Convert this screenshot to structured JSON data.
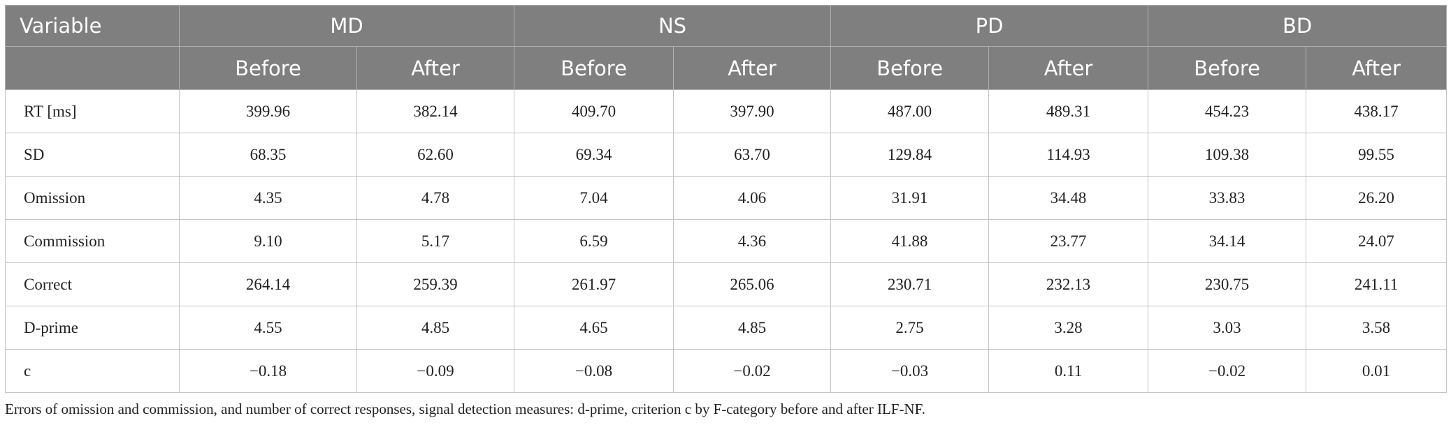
{
  "header": {
    "top": [
      "Variable",
      "MD",
      "NS",
      "PD",
      "BD"
    ],
    "sub": [
      "Before",
      "After",
      "Before",
      "After",
      "Before",
      "After",
      "Before",
      "After"
    ]
  },
  "table": {
    "rows": [
      [
        "RT [ms]",
        "399.96",
        "382.14",
        "409.70",
        "397.90",
        "487.00",
        "489.31",
        "454.23",
        "438.17"
      ],
      [
        "SD",
        "68.35",
        "62.60",
        "69.34",
        "63.70",
        "129.84",
        "114.93",
        "109.38",
        "99.55"
      ],
      [
        "Omission",
        "4.35",
        "4.78",
        "7.04",
        "4.06",
        "31.91",
        "34.48",
        "33.83",
        "26.20"
      ],
      [
        "Commission",
        "9.10",
        "5.17",
        "6.59",
        "4.36",
        "41.88",
        "23.77",
        "34.14",
        "24.07"
      ],
      [
        "Correct",
        "264.14",
        "259.39",
        "261.97",
        "265.06",
        "230.71",
        "232.13",
        "230.75",
        "241.11"
      ],
      [
        "D-prime",
        "4.55",
        "4.85",
        "4.65",
        "4.85",
        "2.75",
        "3.28",
        "3.03",
        "3.58"
      ],
      [
        "c",
        "−0.18",
        "−0.09",
        "−0.08",
        "−0.02",
        "−0.03",
        "0.11",
        "−0.02",
        "0.01"
      ]
    ]
  },
  "footnote": "Errors of omission and commission, and number of correct responses, signal detection measures: d-prime, criterion c by F-category before and after ILF-NF."
}
